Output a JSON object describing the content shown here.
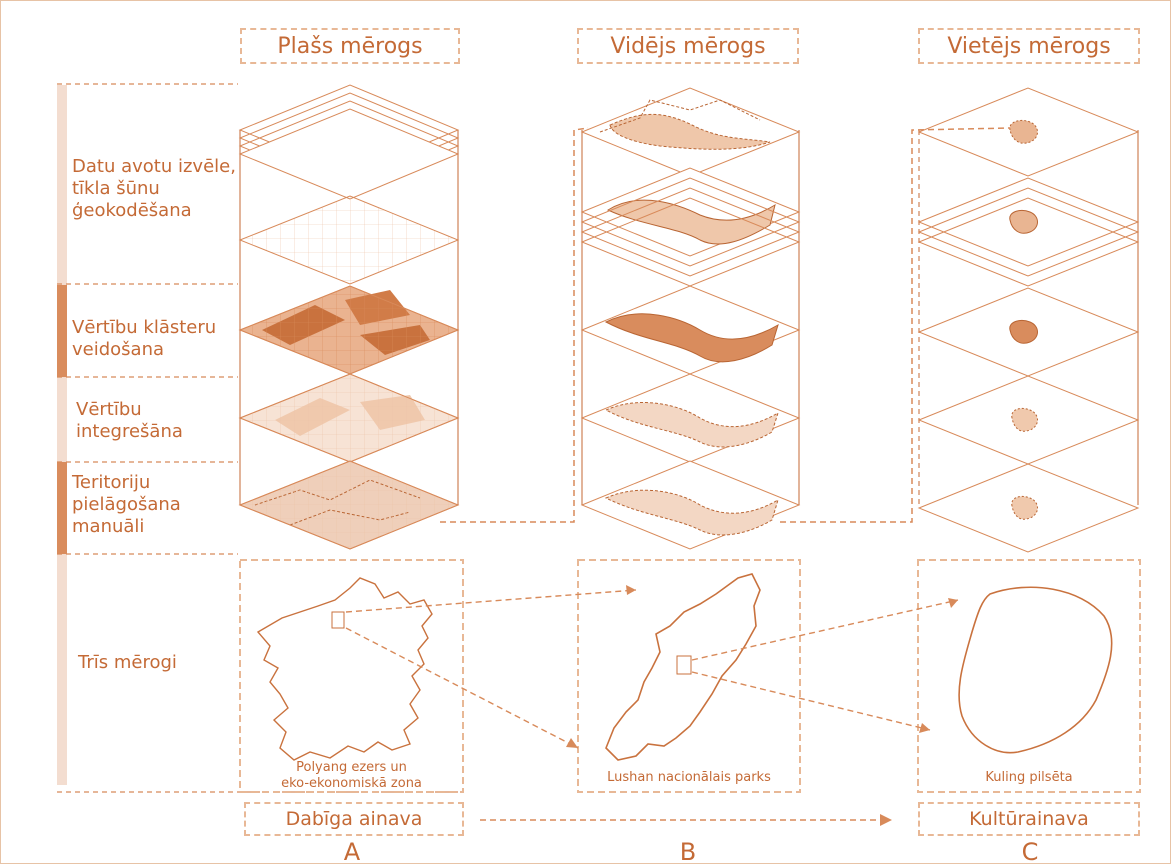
{
  "columns": {
    "a": {
      "header": "Plašs mērogs",
      "caption_line1": "Polyang ezers un",
      "caption_line2": "eko-ekonomiskā  zona",
      "footer": "Dabīga ainava",
      "letter": "A"
    },
    "b": {
      "header": "Vidējs mērogs",
      "caption_line1": "Lushan nacionālais parks",
      "letter": "B"
    },
    "c": {
      "header": "Vietējs mērogs",
      "caption_line1": "Kuling pilsēta",
      "footer": "Kultūrainava",
      "letter": "C"
    }
  },
  "steps": {
    "step1": {
      "line1": "Datu avotu izvēle,",
      "line2": "tīkla šūnu",
      "line3": "ģeokodēšana"
    },
    "step2": {
      "line1": "Vērtību klāsteru",
      "line2": "veidošana"
    },
    "step3": {
      "line1": "Vērtību",
      "line2": "integrešāna"
    },
    "step4": {
      "line1": "Teritoriju",
      "line2": "pielāgošana",
      "line3": "manuāli"
    },
    "step5": {
      "line1": "Trīs mērogi"
    }
  },
  "colors": {
    "accent": "#c46a36",
    "line": "#d88a5a",
    "dashed": "#e8b896",
    "bar_light": "#f3ddd0",
    "bar_dark": "#d98c5d"
  }
}
